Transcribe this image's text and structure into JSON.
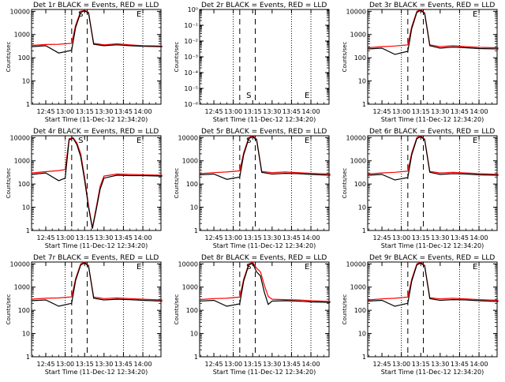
{
  "figure": {
    "xlabel": "Start Time (11-Dec-12 12:34:20)",
    "ylabel": "Counts/sec",
    "x_tick_labels": [
      "12:45",
      "13:00",
      "13:15",
      "13:30",
      "13:45",
      "14:00"
    ],
    "colors": {
      "events": "#000000",
      "lld": "#ff0000",
      "axes": "#000000"
    }
  },
  "chart_data": [
    {
      "type": "line",
      "title": "Det 1r BLACK = Events, RED = LLD",
      "y_scale": "log",
      "ylim": [
        1,
        12000
      ],
      "y_tick_labels": [
        "1",
        "10",
        "100",
        "1000",
        "10000"
      ],
      "markers": [
        "S",
        "E"
      ],
      "x": [
        "12:34",
        "12:45",
        "12:55",
        "13:05",
        "13:08",
        "13:12",
        "13:15",
        "13:18",
        "13:22",
        "13:30",
        "13:40",
        "13:50",
        "14:00",
        "14:15"
      ],
      "series": [
        {
          "name": "Events",
          "values": [
            300,
            330,
            160,
            210,
            2000,
            9000,
            10500,
            8500,
            380,
            330,
            360,
            330,
            310,
            300
          ]
        },
        {
          "name": "LLD",
          "values": [
            340,
            370,
            380,
            420,
            2500,
            10000,
            11000,
            9000,
            420,
            360,
            400,
            360,
            330,
            320
          ]
        }
      ]
    },
    {
      "type": "line",
      "title": "Det 2r BLACK = Events, RED = LLD",
      "y_scale": "log",
      "ylim": [
        1e-06,
        1
      ],
      "y_tick_labels": [
        "10⁻⁶",
        "10⁻⁵",
        "10⁻⁴",
        "10⁻³",
        "10⁻²",
        "10⁻¹",
        "10⁰"
      ],
      "markers": [
        "S",
        "E"
      ],
      "x": [],
      "series": []
    },
    {
      "type": "line",
      "title": "Det 3r BLACK = Events, RED = LLD",
      "y_scale": "log",
      "ylim": [
        1,
        12000
      ],
      "y_tick_labels": [
        "1",
        "10",
        "100",
        "1000",
        "10000"
      ],
      "markers": [
        "E"
      ],
      "x": [
        "12:34",
        "12:45",
        "12:55",
        "13:05",
        "13:08",
        "13:12",
        "13:15",
        "13:18",
        "13:22",
        "13:30",
        "13:40",
        "13:50",
        "14:00",
        "14:15"
      ],
      "series": [
        {
          "name": "Events",
          "values": [
            240,
            260,
            140,
            190,
            1800,
            9000,
            11000,
            8000,
            330,
            260,
            290,
            270,
            250,
            240
          ]
        },
        {
          "name": "LLD",
          "values": [
            270,
            300,
            320,
            360,
            2200,
            10000,
            12000,
            8500,
            360,
            300,
            330,
            300,
            280,
            270
          ]
        }
      ]
    },
    {
      "type": "line",
      "title": "Det 4r BLACK = Events, RED = LLD",
      "y_scale": "log",
      "ylim": [
        1,
        12000
      ],
      "y_tick_labels": [
        "1",
        "10",
        "100",
        "1000",
        "10000"
      ],
      "markers": [
        "S",
        "E"
      ],
      "x": [
        "12:34",
        "12:45",
        "12:55",
        "13:00",
        "13:03",
        "13:06",
        "13:09",
        "13:12",
        "13:15",
        "13:18",
        "13:21",
        "13:24",
        "13:27",
        "13:30",
        "13:40",
        "13:50",
        "14:00",
        "14:15"
      ],
      "series": [
        {
          "name": "Events",
          "values": [
            260,
            300,
            140,
            180,
            8000,
            9500,
            5000,
            1500,
            150,
            10,
            1.2,
            8,
            60,
            180,
            240,
            230,
            230,
            220
          ]
        },
        {
          "name": "LLD",
          "values": [
            300,
            340,
            380,
            420,
            9000,
            10000,
            6000,
            2000,
            200,
            12,
            1.3,
            10,
            80,
            220,
            270,
            260,
            250,
            240
          ]
        }
      ]
    },
    {
      "type": "line",
      "title": "Det 5r BLACK = Events, RED = LLD",
      "y_scale": "log",
      "ylim": [
        1,
        12000
      ],
      "y_tick_labels": [
        "1",
        "10",
        "100",
        "1000",
        "10000"
      ],
      "markers": [
        "S",
        "E"
      ],
      "x": [
        "12:34",
        "12:45",
        "12:55",
        "13:05",
        "13:08",
        "13:12",
        "13:15",
        "13:18",
        "13:22",
        "13:30",
        "13:40",
        "13:50",
        "14:00",
        "14:15"
      ],
      "series": [
        {
          "name": "Events",
          "values": [
            250,
            270,
            160,
            200,
            1800,
            9000,
            11000,
            8000,
            320,
            270,
            290,
            280,
            260,
            240
          ]
        },
        {
          "name": "LLD",
          "values": [
            280,
            310,
            330,
            370,
            2200,
            10000,
            12000,
            8500,
            350,
            310,
            330,
            310,
            290,
            270
          ]
        }
      ]
    },
    {
      "type": "line",
      "title": "Det 6r BLACK = Events, RED = LLD",
      "y_scale": "log",
      "ylim": [
        1,
        12000
      ],
      "y_tick_labels": [
        "1",
        "10",
        "100",
        "1000",
        "10000"
      ],
      "markers": [
        "E"
      ],
      "x": [
        "12:34",
        "12:45",
        "12:55",
        "13:05",
        "13:08",
        "13:12",
        "13:15",
        "13:18",
        "13:22",
        "13:30",
        "13:40",
        "13:50",
        "14:00",
        "14:15"
      ],
      "series": [
        {
          "name": "Events",
          "values": [
            240,
            260,
            150,
            190,
            1800,
            9000,
            11000,
            8000,
            320,
            260,
            280,
            270,
            250,
            240
          ]
        },
        {
          "name": "LLD",
          "values": [
            270,
            300,
            320,
            360,
            2200,
            10000,
            12000,
            8500,
            350,
            300,
            320,
            300,
            280,
            260
          ]
        }
      ]
    },
    {
      "type": "line",
      "title": "Det 7r BLACK = Events, RED = LLD",
      "y_scale": "log",
      "ylim": [
        1,
        12000
      ],
      "y_tick_labels": [
        "1",
        "10",
        "100",
        "1000",
        "10000"
      ],
      "markers": [
        "E"
      ],
      "x": [
        "12:34",
        "12:45",
        "12:55",
        "13:05",
        "13:08",
        "13:12",
        "13:15",
        "13:18",
        "13:22",
        "13:30",
        "13:40",
        "13:50",
        "14:00",
        "14:15"
      ],
      "series": [
        {
          "name": "Events",
          "values": [
            260,
            280,
            150,
            200,
            1900,
            9000,
            11000,
            8000,
            330,
            280,
            300,
            290,
            270,
            250
          ]
        },
        {
          "name": "LLD",
          "values": [
            300,
            330,
            340,
            380,
            2300,
            10000,
            12000,
            8500,
            370,
            320,
            340,
            320,
            300,
            280
          ]
        }
      ]
    },
    {
      "type": "line",
      "title": "Det 8r BLACK = Events, RED = LLD",
      "y_scale": "log",
      "ylim": [
        1,
        12000
      ],
      "y_tick_labels": [
        "1",
        "10",
        "100",
        "1000",
        "10000"
      ],
      "markers": [
        "S",
        "E"
      ],
      "x": [
        "12:34",
        "12:45",
        "12:55",
        "13:05",
        "13:08",
        "13:12",
        "13:15",
        "13:18",
        "13:21",
        "13:24",
        "13:27",
        "13:30",
        "13:40",
        "13:50",
        "14:00",
        "14:15"
      ],
      "series": [
        {
          "name": "Events",
          "values": [
            250,
            270,
            150,
            190,
            1800,
            9000,
            10500,
            4500,
            3000,
            600,
            180,
            250,
            260,
            250,
            230,
            220
          ]
        },
        {
          "name": "LLD",
          "values": [
            290,
            320,
            330,
            370,
            2200,
            10000,
            11500,
            6500,
            4500,
            1200,
            400,
            300,
            290,
            280,
            260,
            240
          ]
        }
      ]
    },
    {
      "type": "line",
      "title": "Det 9r BLACK = Events, RED = LLD",
      "y_scale": "log",
      "ylim": [
        1,
        12000
      ],
      "y_tick_labels": [
        "1",
        "10",
        "100",
        "1000",
        "10000"
      ],
      "markers": [
        "E"
      ],
      "x": [
        "12:34",
        "12:45",
        "12:55",
        "13:05",
        "13:08",
        "13:12",
        "13:15",
        "13:18",
        "13:22",
        "13:30",
        "13:40",
        "13:50",
        "14:00",
        "14:15"
      ],
      "series": [
        {
          "name": "Events",
          "values": [
            250,
            270,
            150,
            200,
            1800,
            9000,
            11000,
            8000,
            320,
            270,
            290,
            280,
            260,
            240
          ]
        },
        {
          "name": "LLD",
          "values": [
            280,
            310,
            330,
            370,
            2200,
            10000,
            12000,
            8500,
            350,
            310,
            330,
            310,
            290,
            270
          ]
        }
      ]
    }
  ]
}
